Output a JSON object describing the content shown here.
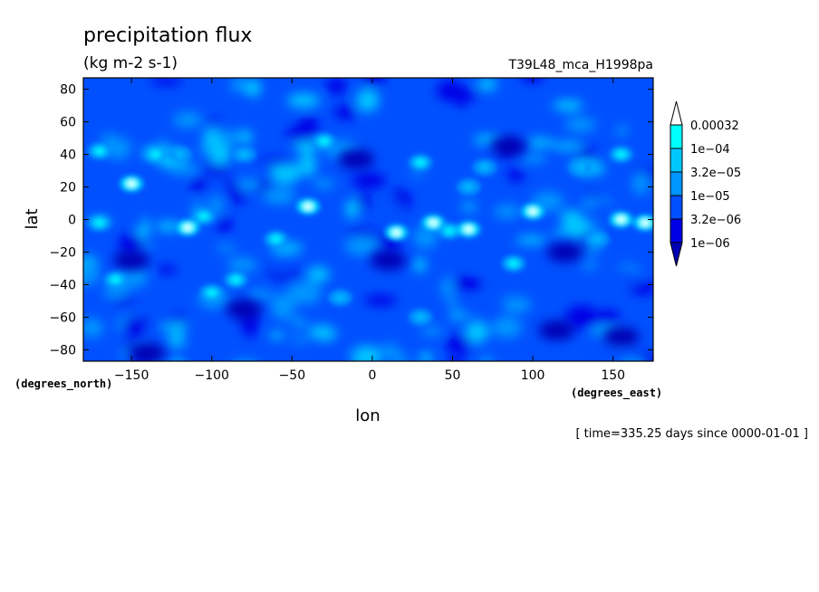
{
  "chart_data": {
    "type": "heatmap",
    "title": "precipitation flux",
    "units": "(kg m-2 s-1)",
    "experiment": "T39L48_mca_H1998pa",
    "xlabel": "lon",
    "ylabel": "lat",
    "x_units": "(degrees_east)",
    "y_units": "(degrees_north)",
    "x_ticks": [
      -150,
      -100,
      -50,
      0,
      50,
      100,
      150
    ],
    "x_tick_labels": [
      "−150",
      "−100",
      "−50",
      "0",
      "50",
      "100",
      "150"
    ],
    "y_ticks": [
      80,
      60,
      40,
      20,
      0,
      -20,
      -40,
      -60,
      -80
    ],
    "y_tick_labels": [
      "80",
      "60",
      "40",
      "20",
      "0",
      "−20",
      "−40",
      "−60",
      "−80"
    ],
    "xlim": [
      -180,
      175
    ],
    "ylim": [
      -87,
      87
    ],
    "time_label": "[ time=335.25 days since 0000-01-01 ]",
    "colorbar": {
      "levels": [
        "0.00032",
        "1e−04",
        "3.2e−05",
        "1e−05",
        "3.2e−06",
        "1e−06"
      ],
      "colors": [
        "#ffffff",
        "#00ffff",
        "#00c8ff",
        "#0096ff",
        "#0050ff",
        "#0000e6",
        "#0000b4"
      ],
      "extend": "both"
    },
    "palette": {
      "very_low": "#0000b4",
      "low": "#0000e6",
      "medium_low": "#0050ff",
      "medium": "#0096ff",
      "medium_high": "#00c8ff",
      "high": "#00ffff",
      "max": "#ffffff"
    },
    "hotspots": [
      {
        "lon": -170,
        "lat": 42,
        "level": 5
      },
      {
        "lon": -150,
        "lat": 22,
        "level": 6
      },
      {
        "lon": -135,
        "lat": 40,
        "level": 5
      },
      {
        "lon": -170,
        "lat": -2,
        "level": 5
      },
      {
        "lon": -115,
        "lat": -5,
        "level": 6
      },
      {
        "lon": -105,
        "lat": 2,
        "level": 5
      },
      {
        "lon": -120,
        "lat": 40,
        "level": 4
      },
      {
        "lon": -80,
        "lat": 40,
        "level": 4
      },
      {
        "lon": -160,
        "lat": -37,
        "level": 5
      },
      {
        "lon": -100,
        "lat": -45,
        "level": 5
      },
      {
        "lon": -85,
        "lat": -37,
        "level": 5
      },
      {
        "lon": -60,
        "lat": -12,
        "level": 5
      },
      {
        "lon": -40,
        "lat": 8,
        "level": 6
      },
      {
        "lon": -30,
        "lat": 48,
        "level": 5
      },
      {
        "lon": 15,
        "lat": -8,
        "level": 6
      },
      {
        "lon": 30,
        "lat": 35,
        "level": 5
      },
      {
        "lon": 38,
        "lat": -2,
        "level": 6
      },
      {
        "lon": 48,
        "lat": -7,
        "level": 5
      },
      {
        "lon": 60,
        "lat": -6,
        "level": 6
      },
      {
        "lon": 100,
        "lat": 5,
        "level": 6
      },
      {
        "lon": 88,
        "lat": -27,
        "level": 5
      },
      {
        "lon": 155,
        "lat": 0,
        "level": 6
      },
      {
        "lon": 170,
        "lat": -2,
        "level": 6
      },
      {
        "lon": 155,
        "lat": 40,
        "level": 5
      },
      {
        "lon": 140,
        "lat": -12,
        "level": 4
      },
      {
        "lon": 30,
        "lat": -60,
        "level": 4
      },
      {
        "lon": -20,
        "lat": -48,
        "level": 4
      },
      {
        "lon": 70,
        "lat": 32,
        "level": 4
      },
      {
        "lon": 130,
        "lat": 32,
        "level": 4
      },
      {
        "lon": 60,
        "lat": 20,
        "level": 4
      }
    ],
    "dry_patches": [
      {
        "lon": 115,
        "lat": -68
      },
      {
        "lon": 155,
        "lat": -72
      },
      {
        "lon": -150,
        "lat": -25
      },
      {
        "lon": -10,
        "lat": 37
      },
      {
        "lon": 85,
        "lat": 45
      },
      {
        "lon": -80,
        "lat": -55
      },
      {
        "lon": 10,
        "lat": -25
      },
      {
        "lon": -140,
        "lat": -82
      },
      {
        "lon": 120,
        "lat": -20
      }
    ]
  }
}
